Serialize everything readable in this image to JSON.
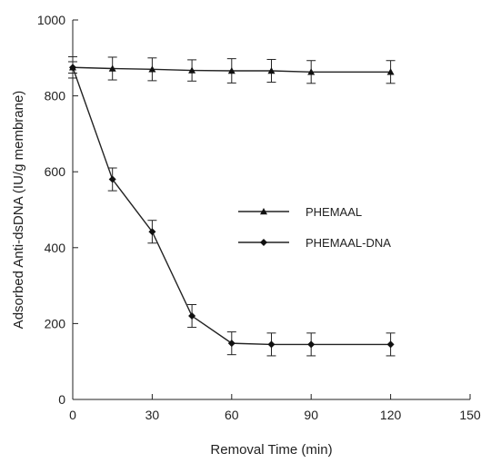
{
  "chart_data": {
    "type": "line",
    "xlabel": "Removal Time (min)",
    "ylabel": "Adsorbed Anti-dsDNA (IU/g membrane)",
    "xlim": [
      0,
      150
    ],
    "ylim": [
      0,
      1000
    ],
    "xticks": [
      0,
      30,
      60,
      90,
      120,
      150
    ],
    "yticks": [
      0,
      200,
      400,
      600,
      800,
      1000
    ],
    "grid": false,
    "legend_position": "center-right",
    "series": [
      {
        "name": "PHEMAAL",
        "marker": "triangle",
        "x": [
          0,
          15,
          30,
          45,
          60,
          75,
          90,
          120
        ],
        "y": [
          875,
          872,
          870,
          867,
          866,
          866,
          863,
          863
        ],
        "error": [
          28,
          30,
          30,
          28,
          32,
          30,
          30,
          30
        ]
      },
      {
        "name": "PHEMAAL-DNA",
        "marker": "diamond",
        "x": [
          0,
          15,
          30,
          45,
          60,
          75,
          90,
          120
        ],
        "y": [
          875,
          580,
          442,
          220,
          148,
          145,
          145,
          145
        ],
        "error": [
          15,
          30,
          30,
          30,
          30,
          30,
          30,
          30
        ]
      }
    ]
  }
}
